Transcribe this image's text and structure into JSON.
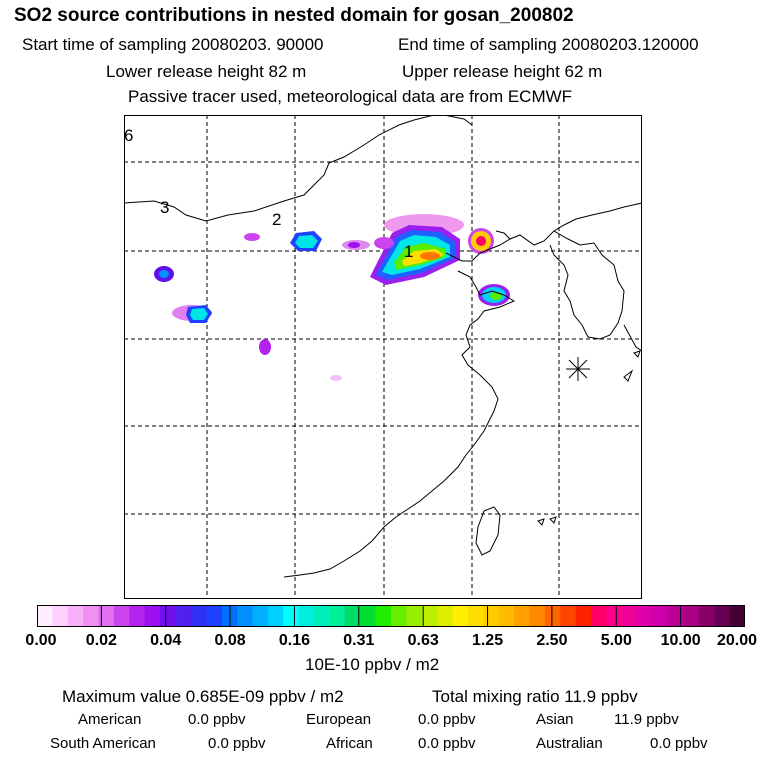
{
  "header": {
    "title": "SO2 source contributions in nested domain for gosan_200802",
    "start_time": "Start time of sampling 20080203. 90000",
    "end_time": "End time of sampling 20080203.120000",
    "lower_release": "Lower release height   82 m",
    "upper_release": "Upper release height   62 m",
    "note": "Passive tracer used, meteorological data are from ECMWF"
  },
  "map": {
    "labels": [
      "6",
      "3",
      "2",
      "1"
    ],
    "station_marker": "asterisk-icon"
  },
  "colorbar": {
    "ticks": [
      "0.00",
      "0.02",
      "0.04",
      "0.08",
      "0.16",
      "0.31",
      "0.63",
      "1.25",
      "2.50",
      "5.00",
      "10.00",
      "20.00"
    ],
    "unit": "10E-10 ppbv / m2",
    "colors": [
      "#ffeeff",
      "#ffd0ff",
      "#f8b0f8",
      "#f090f0",
      "#e070f0",
      "#cc44ee",
      "#b422ee",
      "#9a10ee",
      "#7010ee",
      "#5020ee",
      "#3030f0",
      "#2040ff",
      "#0070ff",
      "#0090ff",
      "#00b0ff",
      "#00d0ff",
      "#00ffff",
      "#00f0dd",
      "#00eebb",
      "#00ee99",
      "#00dd66",
      "#00dd33",
      "#22ee00",
      "#66ee00",
      "#99ee00",
      "#bbee00",
      "#ddee00",
      "#ffee00",
      "#ffdd00",
      "#ffcc00",
      "#ffbb00",
      "#ffa000",
      "#ff8800",
      "#ff6600",
      "#ff4400",
      "#ff2200",
      "#ff0066",
      "#ff0088",
      "#ee0099",
      "#dd00aa",
      "#cc00aa",
      "#bb0099",
      "#aa0088",
      "#880066",
      "#660055",
      "#440033"
    ]
  },
  "summary": {
    "max_value": "Maximum value  0.685E-09 ppbv / m2",
    "total_mixing": "Total mixing ratio       11.9 ppbv",
    "american": "American",
    "american_val": "0.0 ppbv",
    "european": "European",
    "european_val": "0.0 ppbv",
    "asian": "Asian",
    "asian_val": "11.9 ppbv",
    "south_american": "South American",
    "south_american_val": "0.0 ppbv",
    "african": "African",
    "african_val": "0.0 ppbv",
    "australian": "Australian",
    "australian_val": "0.0 ppbv"
  }
}
